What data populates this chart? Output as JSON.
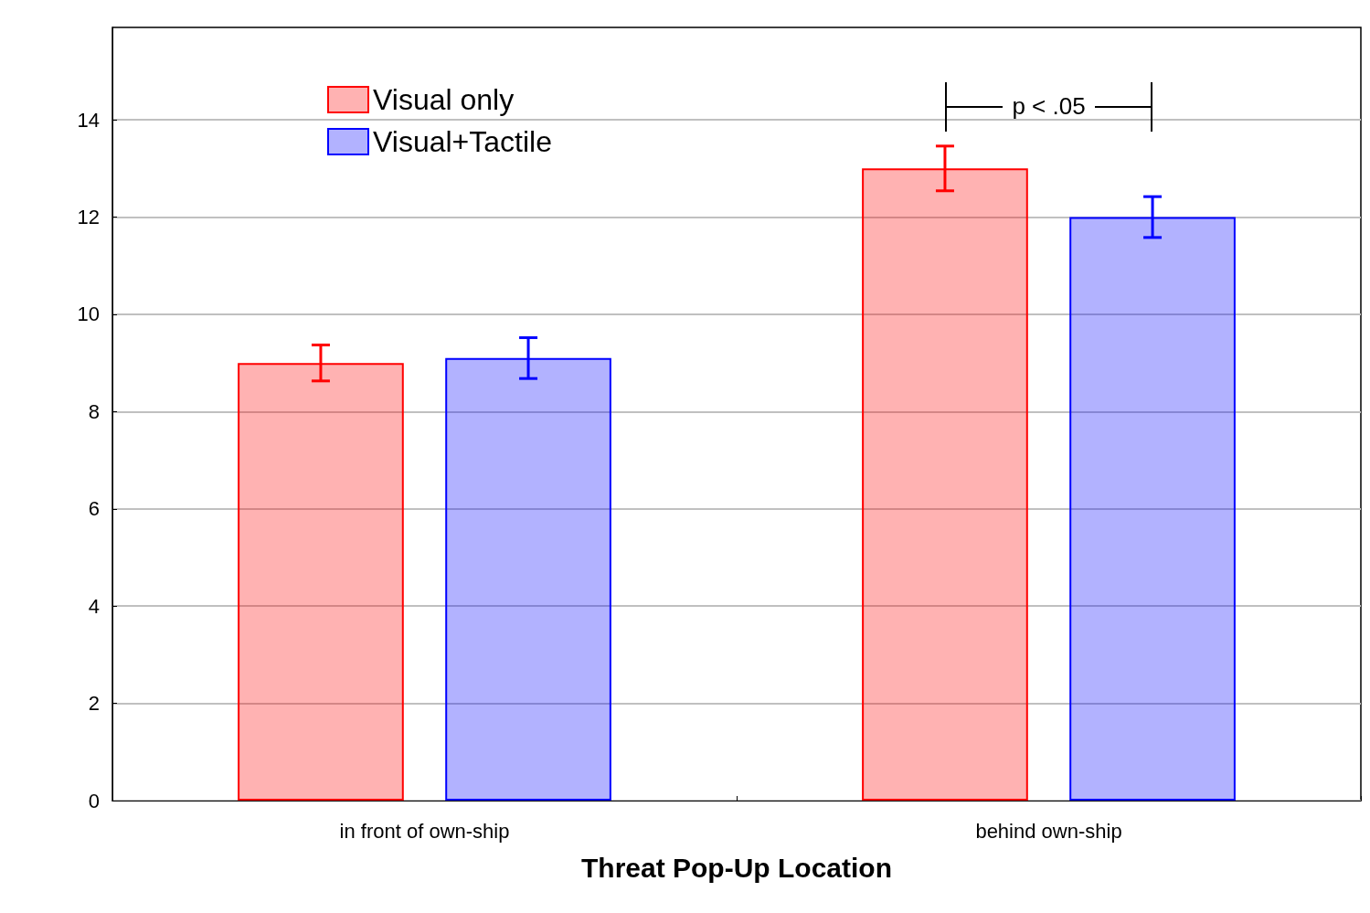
{
  "chart_data": {
    "type": "bar",
    "xlabel": "Threat Pop-Up Location",
    "categories": [
      "in front of own-ship",
      "behind own-ship"
    ],
    "series": [
      {
        "name": "Visual only",
        "color": "#ff0000",
        "values": [
          9.0,
          13.0
        ],
        "errors": [
          0.37,
          0.46
        ]
      },
      {
        "name": "Visual+Tactile",
        "color": "#0000ff",
        "values": [
          9.1,
          12.0
        ],
        "errors": [
          0.42,
          0.42
        ]
      }
    ],
    "ylim": [
      0,
      15.9
    ],
    "yticks": [
      0,
      2,
      4,
      6,
      8,
      10,
      12,
      14
    ],
    "grid": "y",
    "legend": "top left",
    "annotations": [
      "p < .05"
    ]
  }
}
